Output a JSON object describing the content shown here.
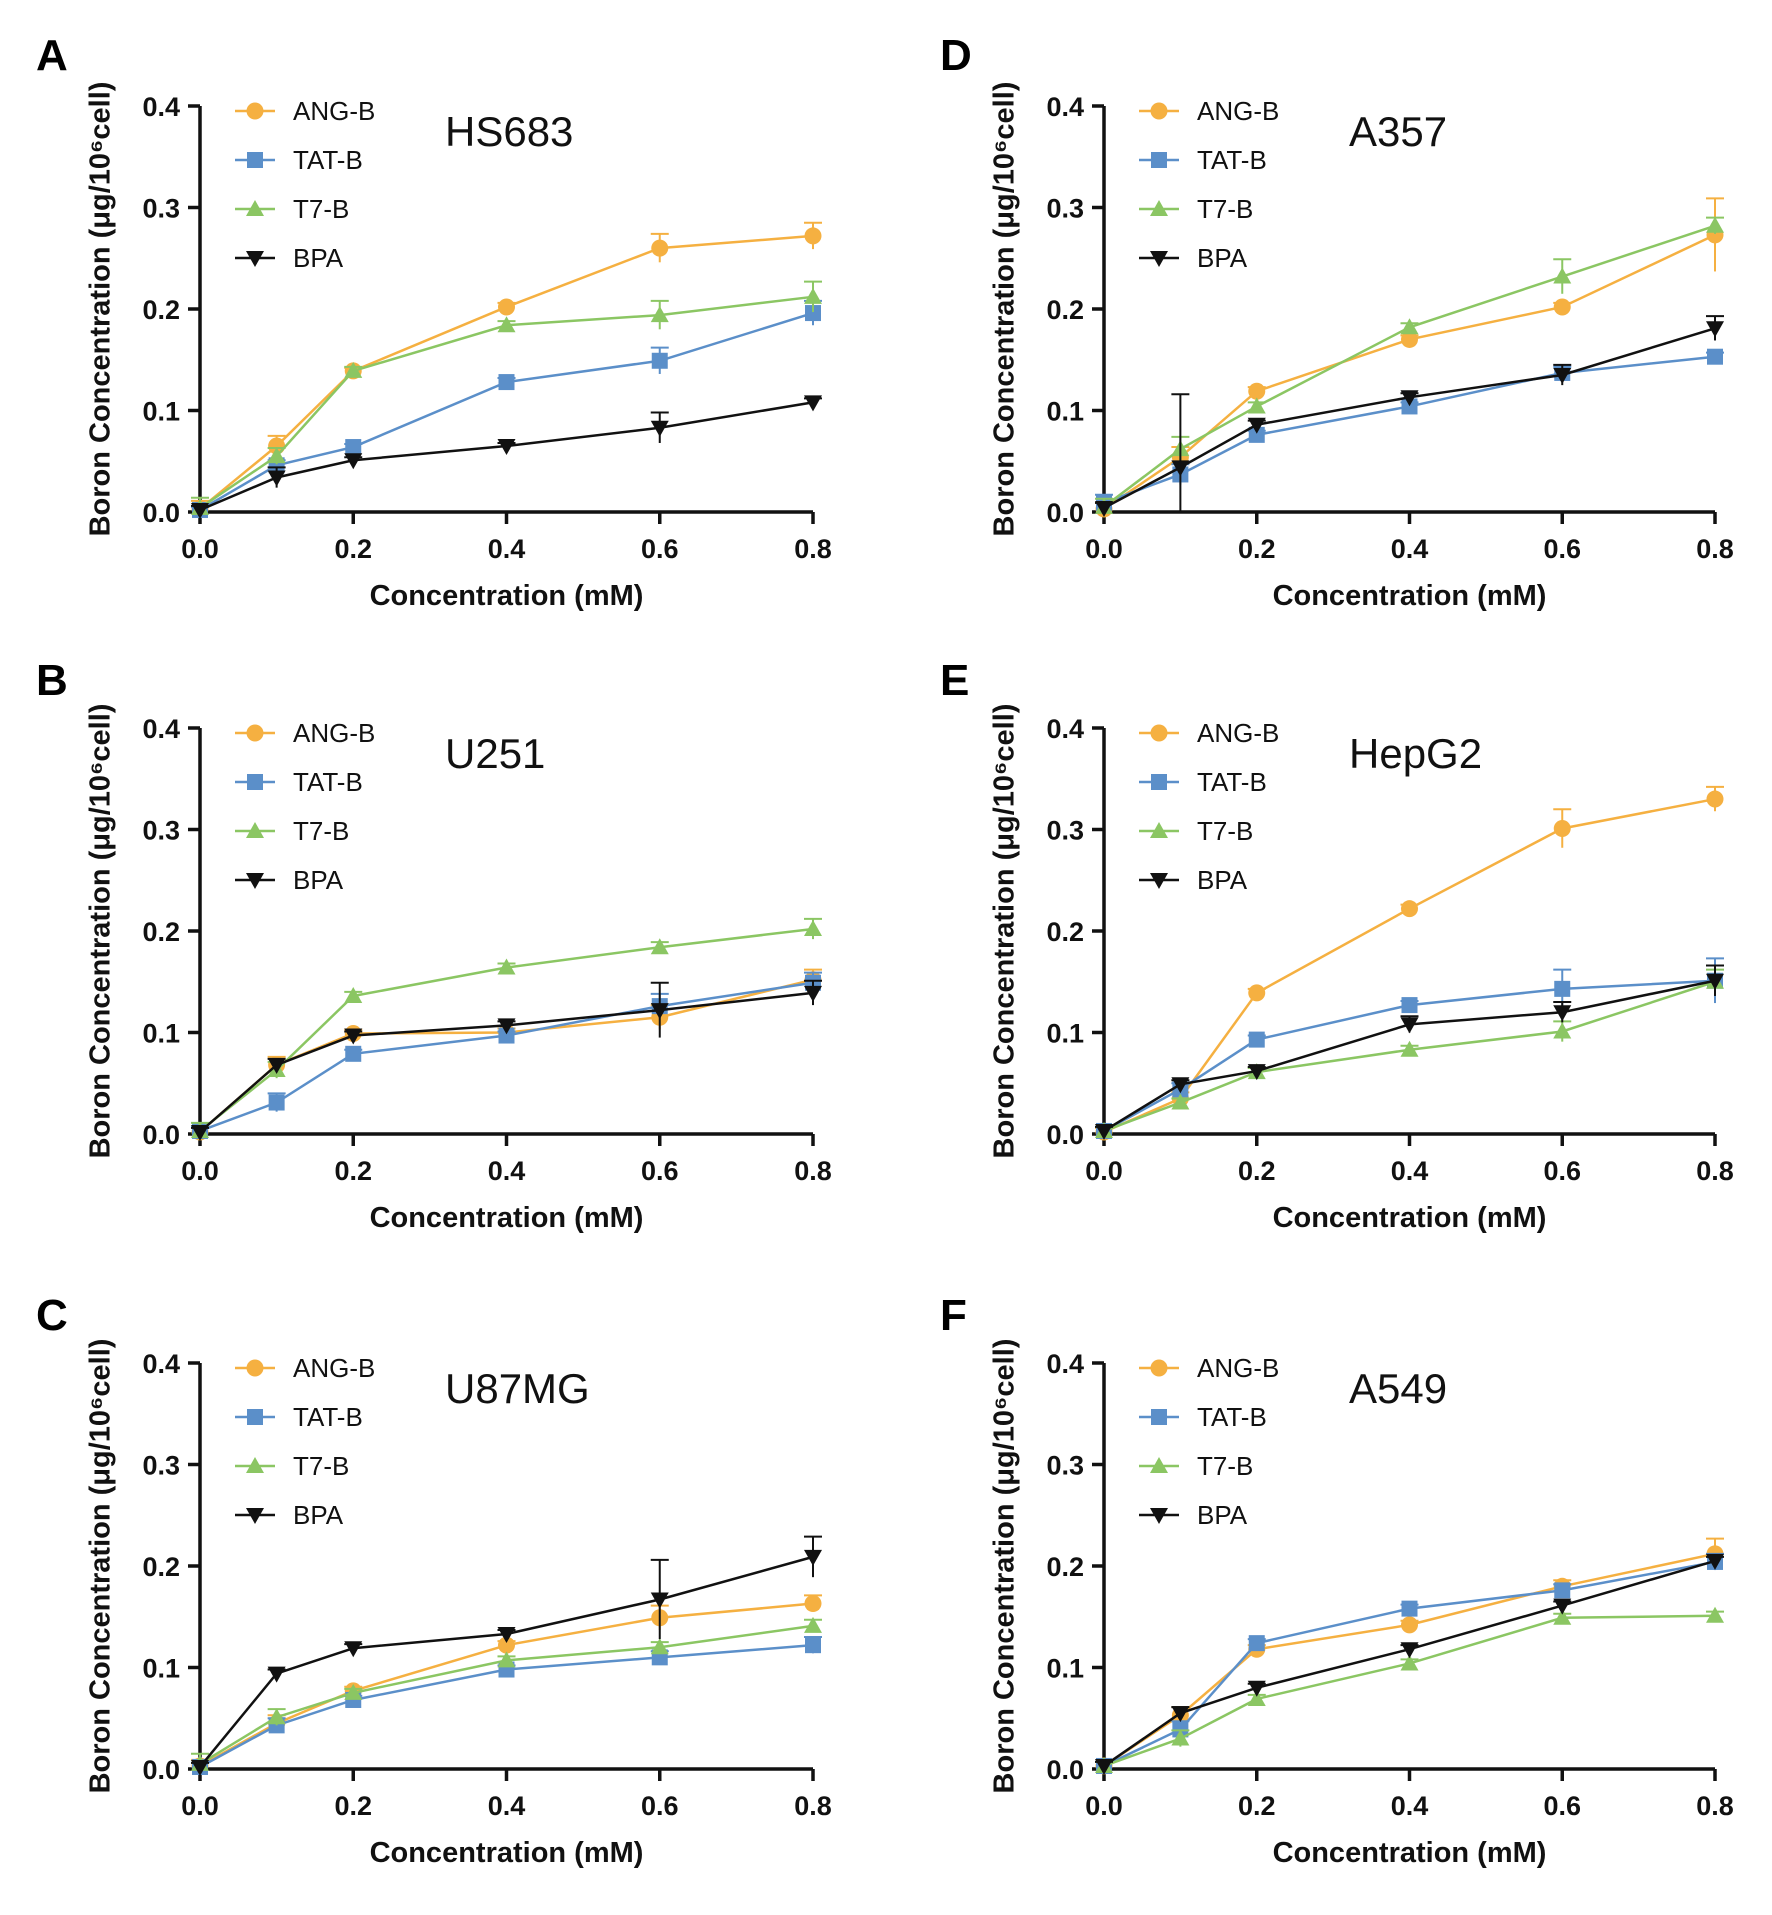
{
  "figure": {
    "series_names": [
      "ANG-B",
      "TAT-B",
      "T7-B",
      "BPA"
    ],
    "series_colors": {
      "ANG-B": "#F5B041",
      "TAT-B": "#5B8FC9",
      "T7-B": "#8BC663",
      "BPA": "#111111"
    },
    "series_markers": {
      "ANG-B": "circle",
      "TAT-B": "square",
      "T7-B": "triangle-up",
      "BPA": "triangle-down"
    }
  },
  "chart_data": [
    {
      "panel": "A",
      "type": "line",
      "title": "HS683",
      "xlabel": "Concentration (mM)",
      "ylabel": "Boron Concentration (μg/10⁶cell)",
      "xlim": [
        0,
        0.8
      ],
      "ylim": [
        0,
        0.4
      ],
      "x_ticks": [
        "0.0",
        "0.2",
        "0.4",
        "0.6",
        "0.8"
      ],
      "y_ticks": [
        "0.0",
        "0.1",
        "0.2",
        "0.3",
        "0.4"
      ],
      "x": [
        0,
        0.1,
        0.2,
        0.4,
        0.6,
        0.8
      ],
      "legend": "top-left",
      "series": [
        {
          "name": "ANG-B",
          "values": [
            0.003,
            0.065,
            0.139,
            0.202,
            0.26,
            0.272
          ],
          "errors": [
            0.008,
            0.01,
            0.003,
            0.004,
            0.014,
            0.013
          ]
        },
        {
          "name": "TAT-B",
          "values": [
            0.002,
            0.046,
            0.064,
            0.128,
            0.149,
            0.196
          ],
          "errors": [
            0.003,
            0.005,
            0.003,
            0.004,
            0.013,
            0.012
          ]
        },
        {
          "name": "T7-B",
          "values": [
            0.004,
            0.055,
            0.139,
            0.184,
            0.194,
            0.212
          ],
          "errors": [
            0.01,
            0.008,
            0.004,
            0.004,
            0.014,
            0.015
          ]
        },
        {
          "name": "BPA",
          "values": [
            0.002,
            0.034,
            0.051,
            0.065,
            0.083,
            0.108
          ],
          "errors": [
            0.004,
            0.01,
            0.003,
            0.003,
            0.015,
            0.004
          ]
        }
      ]
    },
    {
      "panel": "B",
      "type": "line",
      "title": "U251",
      "xlabel": "Concentration (mM)",
      "ylabel": "Boron Concentration (μg/10⁶cell)",
      "xlim": [
        0,
        0.8
      ],
      "ylim": [
        0,
        0.4
      ],
      "x_ticks": [
        "0.0",
        "0.2",
        "0.4",
        "0.6",
        "0.8"
      ],
      "y_ticks": [
        "0.0",
        "0.1",
        "0.2",
        "0.3",
        "0.4"
      ],
      "x": [
        0,
        0.1,
        0.2,
        0.4,
        0.6,
        0.8
      ],
      "legend": "top-left",
      "series": [
        {
          "name": "ANG-B",
          "values": [
            0.002,
            0.068,
            0.099,
            0.1,
            0.115,
            0.152
          ],
          "errors": [
            0.004,
            0.008,
            0.004,
            0.004,
            0.012,
            0.01
          ]
        },
        {
          "name": "TAT-B",
          "values": [
            0.003,
            0.031,
            0.079,
            0.097,
            0.126,
            0.149
          ],
          "errors": [
            0.004,
            0.009,
            0.004,
            0.004,
            0.012,
            0.01
          ]
        },
        {
          "name": "T7-B",
          "values": [
            0.003,
            0.063,
            0.136,
            0.164,
            0.184,
            0.202
          ],
          "errors": [
            0.008,
            0.008,
            0.004,
            0.004,
            0.005,
            0.01
          ]
        },
        {
          "name": "BPA",
          "values": [
            0.002,
            0.068,
            0.097,
            0.107,
            0.122,
            0.139
          ],
          "errors": [
            0.004,
            0.006,
            0.004,
            0.004,
            0.027,
            0.012
          ]
        }
      ]
    },
    {
      "panel": "C",
      "type": "line",
      "title": "U87MG",
      "xlabel": "Concentration (mM)",
      "ylabel": "Boron Concentration (μg/10⁶cell)",
      "xlim": [
        0,
        0.8
      ],
      "ylim": [
        0,
        0.4
      ],
      "x_ticks": [
        "0.0",
        "0.2",
        "0.4",
        "0.6",
        "0.8"
      ],
      "y_ticks": [
        "0.0",
        "0.1",
        "0.2",
        "0.3",
        "0.4"
      ],
      "x": [
        0,
        0.1,
        0.2,
        0.4,
        0.6,
        0.8
      ],
      "legend": "top-left",
      "series": [
        {
          "name": "ANG-B",
          "values": [
            0.003,
            0.045,
            0.077,
            0.122,
            0.149,
            0.163
          ],
          "errors": [
            0.006,
            0.008,
            0.004,
            0.004,
            0.012,
            0.008
          ]
        },
        {
          "name": "TAT-B",
          "values": [
            0.002,
            0.043,
            0.068,
            0.098,
            0.11,
            0.122
          ],
          "errors": [
            0.004,
            0.007,
            0.004,
            0.004,
            0.006,
            0.008
          ]
        },
        {
          "name": "T7-B",
          "values": [
            0.005,
            0.051,
            0.075,
            0.107,
            0.12,
            0.141
          ],
          "errors": [
            0.01,
            0.008,
            0.004,
            0.004,
            0.005,
            0.006
          ]
        },
        {
          "name": "BPA",
          "values": [
            0.002,
            0.094,
            0.119,
            0.133,
            0.167,
            0.209
          ],
          "errors": [
            0.004,
            0.004,
            0.004,
            0.004,
            0.039,
            0.02
          ]
        }
      ]
    },
    {
      "panel": "D",
      "type": "line",
      "title": "A357",
      "xlabel": "Concentration (mM)",
      "ylabel": "Boron Concentration (μg/10⁶cell)",
      "xlim": [
        0,
        0.8
      ],
      "ylim": [
        0,
        0.4
      ],
      "x_ticks": [
        "0.0",
        "0.2",
        "0.4",
        "0.6",
        "0.8"
      ],
      "y_ticks": [
        "0.0",
        "0.1",
        "0.2",
        "0.3",
        "0.4"
      ],
      "x": [
        0,
        0.1,
        0.2,
        0.4,
        0.6,
        0.8
      ],
      "legend": "top-left",
      "series": [
        {
          "name": "ANG-B",
          "values": [
            0.003,
            0.054,
            0.119,
            0.17,
            0.202,
            0.273
          ],
          "errors": [
            0.006,
            0.01,
            0.004,
            0.004,
            0.004,
            0.036
          ]
        },
        {
          "name": "TAT-B",
          "values": [
            0.009,
            0.037,
            0.076,
            0.104,
            0.137,
            0.153
          ],
          "errors": [
            0.008,
            0.01,
            0.004,
            0.004,
            0.006,
            0.004
          ]
        },
        {
          "name": "T7-B",
          "values": [
            0.005,
            0.062,
            0.104,
            0.182,
            0.232,
            0.282
          ],
          "errors": [
            0.008,
            0.012,
            0.004,
            0.004,
            0.017,
            0.008
          ]
        },
        {
          "name": "BPA",
          "values": [
            0.004,
            0.044,
            0.086,
            0.113,
            0.135,
            0.181
          ],
          "errors": [
            0.005,
            0.072,
            0.004,
            0.004,
            0.01,
            0.012
          ]
        }
      ]
    },
    {
      "panel": "E",
      "type": "line",
      "title": "HepG2",
      "xlabel": "Concentration (mM)",
      "ylabel": "Boron Concentration (μg/10⁶cell)",
      "xlim": [
        0,
        0.8
      ],
      "ylim": [
        0,
        0.4
      ],
      "x_ticks": [
        "0.0",
        "0.2",
        "0.4",
        "0.6",
        "0.8"
      ],
      "y_ticks": [
        "0.0",
        "0.1",
        "0.2",
        "0.3",
        "0.4"
      ],
      "x": [
        0,
        0.1,
        0.2,
        0.4,
        0.6,
        0.8
      ],
      "legend": "top-left",
      "series": [
        {
          "name": "ANG-B",
          "values": [
            0.002,
            0.035,
            0.139,
            0.222,
            0.301,
            0.33
          ],
          "errors": [
            0.004,
            0.006,
            0.004,
            0.004,
            0.019,
            0.012
          ]
        },
        {
          "name": "TAT-B",
          "values": [
            0.003,
            0.044,
            0.093,
            0.127,
            0.143,
            0.151
          ],
          "errors": [
            0.004,
            0.006,
            0.004,
            0.004,
            0.019,
            0.022
          ]
        },
        {
          "name": "T7-B",
          "values": [
            0.003,
            0.031,
            0.061,
            0.083,
            0.101,
            0.15
          ],
          "errors": [
            0.004,
            0.004,
            0.004,
            0.004,
            0.01,
            0.012
          ]
        },
        {
          "name": "BPA",
          "values": [
            0.003,
            0.049,
            0.062,
            0.108,
            0.12,
            0.151
          ],
          "errors": [
            0.004,
            0.004,
            0.004,
            0.008,
            0.01,
            0.015
          ]
        }
      ]
    },
    {
      "panel": "F",
      "type": "line",
      "title": "A549",
      "xlabel": "Concentration (mM)",
      "ylabel": "Boron Concentration (μg/10⁶cell)",
      "xlim": [
        0,
        0.8
      ],
      "ylim": [
        0,
        0.4
      ],
      "x_ticks": [
        "0.0",
        "0.2",
        "0.4",
        "0.6",
        "0.8"
      ],
      "y_ticks": [
        "0.0",
        "0.1",
        "0.2",
        "0.3",
        "0.4"
      ],
      "x": [
        0,
        0.1,
        0.2,
        0.4,
        0.6,
        0.8
      ],
      "legend": "top-left",
      "series": [
        {
          "name": "ANG-B",
          "values": [
            0.003,
            0.053,
            0.118,
            0.142,
            0.18,
            0.212
          ],
          "errors": [
            0.004,
            0.008,
            0.004,
            0.004,
            0.006,
            0.015
          ]
        },
        {
          "name": "TAT-B",
          "values": [
            0.003,
            0.039,
            0.124,
            0.158,
            0.176,
            0.204
          ],
          "errors": [
            0.004,
            0.008,
            0.004,
            0.004,
            0.006,
            0.008
          ]
        },
        {
          "name": "T7-B",
          "values": [
            0.003,
            0.03,
            0.069,
            0.104,
            0.149,
            0.151
          ],
          "errors": [
            0.004,
            0.008,
            0.004,
            0.004,
            0.004,
            0.004
          ]
        },
        {
          "name": "BPA",
          "values": [
            0.003,
            0.055,
            0.08,
            0.118,
            0.161,
            0.205
          ],
          "errors": [
            0.004,
            0.006,
            0.004,
            0.004,
            0.004,
            0.004
          ]
        }
      ]
    }
  ]
}
